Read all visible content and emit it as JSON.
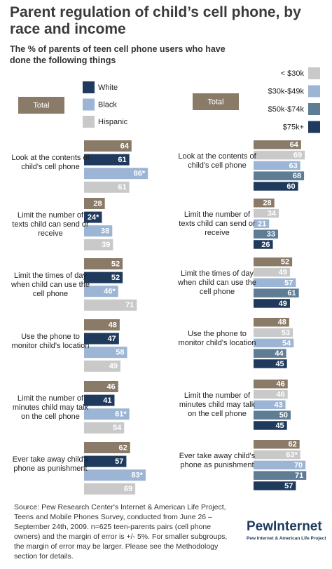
{
  "title": "Parent regulation of child’s cell phone, by race and income",
  "subtitle": "The % of parents of teen cell phone users who have done the following things",
  "chart_data": [
    {
      "type": "bar",
      "orientation": "horizontal",
      "categories": [
        "Look at the contents of child's cell phone",
        "Limit the number of texts child can send or receive",
        "Limit the times of day when child can use the cell phone",
        "Use the phone to monitor child's location",
        "Limit the number of minutes child may talk on the cell phone",
        "Ever take away child's phone as punishment"
      ],
      "series": [
        {
          "name": "Total",
          "color": "#8a7b69",
          "values": [
            64,
            28,
            52,
            48,
            46,
            62
          ]
        },
        {
          "name": "White",
          "color": "#1f3a5c",
          "values": [
            61,
            24,
            52,
            47,
            41,
            57
          ],
          "value_labels": [
            "61",
            "24*",
            "52",
            "47",
            "41",
            "57"
          ]
        },
        {
          "name": "Black",
          "color": "#9db5d4",
          "values": [
            86,
            38,
            46,
            58,
            61,
            83
          ],
          "value_labels": [
            "86*",
            "38",
            "46*",
            "58",
            "61*",
            "83*"
          ]
        },
        {
          "name": "Hispanic",
          "color": "#c9c9c9",
          "values": [
            61,
            39,
            71,
            49,
            54,
            69
          ]
        }
      ]
    },
    {
      "type": "bar",
      "orientation": "horizontal",
      "categories": [
        "Look at the contents of child's cell phone",
        "Limit the number of texts child can send or receive",
        "Limit the times of day when child can use the cell phone",
        "Use the phone to monitor child's location",
        "Limit the number of minutes child may talk on the cell phone",
        "Ever take away child's phone as punishment"
      ],
      "series": [
        {
          "name": "Total",
          "color": "#8a7b69",
          "values": [
            64,
            28,
            52,
            48,
            46,
            62
          ]
        },
        {
          "name": "< $30k",
          "color": "#c9c9c9",
          "values": [
            69,
            34,
            49,
            53,
            46,
            63
          ],
          "value_labels": [
            "69",
            "34",
            "49",
            "53",
            "46",
            "63*"
          ]
        },
        {
          "name": "$30k-$49k",
          "color": "#9db5d4",
          "values": [
            63,
            21,
            57,
            54,
            43,
            70
          ]
        },
        {
          "name": "$50k-$74k",
          "color": "#5e7d95",
          "values": [
            68,
            33,
            61,
            44,
            50,
            71
          ]
        },
        {
          "name": "$75k+",
          "color": "#1f3a5c",
          "values": [
            60,
            26,
            49,
            45,
            45,
            57
          ]
        }
      ]
    }
  ],
  "source": "Source: Pew Research Center's Internet & American Life Project, Teens and Mobile Phones Survey, conducted from June 26 – September 24th, 2009. n=625 teen-parents pairs (cell phone owners) and the margin of error is +/- 5%. For smaller subgroups, the margin of error may be larger. Please see the Methodology section for details.",
  "logo": {
    "name": "PewInternet",
    "tagline": "Pew Internet & American Life Project"
  }
}
